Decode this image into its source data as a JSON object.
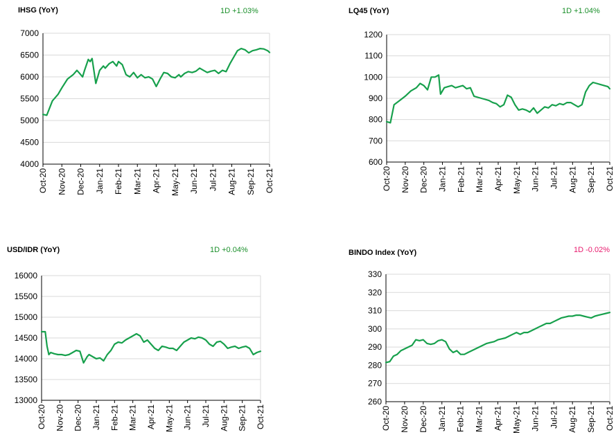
{
  "colors": {
    "line": "#17a04c",
    "positive": "#1a8f2a",
    "negative": "#e8196d",
    "grid": "#d9d9d9",
    "axis": "#000000"
  },
  "chart_data": [
    {
      "type": "line",
      "title": "IHSG (YoY)",
      "change": "1D +1.03%",
      "change_sign": "positive",
      "ylim": [
        4000,
        7000
      ],
      "yticks": [
        "4000",
        "4500",
        "5000",
        "5500",
        "6000",
        "6500",
        "7000"
      ],
      "xticks": [
        "Oct-20",
        "Nov-20",
        "Dec-20",
        "Jan-21",
        "Feb-21",
        "Mar-21",
        "Apr-21",
        "May-21",
        "Jun-21",
        "Jul-21",
        "Aug-21",
        "Sep-21",
        "Oct-21"
      ],
      "grid": "horizontal",
      "series": [
        {
          "x": [
            0,
            0.2,
            0.5,
            0.8,
            1.0,
            1.3,
            1.6,
            1.8,
            1.9,
            2.1,
            2.2,
            2.4,
            2.5,
            2.6,
            2.8,
            3.0,
            3.2,
            3.3,
            3.5,
            3.7,
            3.9,
            4.0,
            4.2,
            4.4,
            4.6,
            4.8,
            5.0,
            5.2,
            5.4,
            5.6,
            5.8,
            6.0,
            6.2,
            6.4,
            6.6,
            6.8,
            7.0,
            7.2,
            7.3,
            7.5,
            7.7,
            7.9,
            8.1,
            8.3,
            8.5,
            8.7,
            8.9,
            9.1,
            9.3,
            9.5,
            9.7,
            9.9,
            10.1,
            10.3,
            10.5,
            10.7,
            10.9,
            11.1,
            11.3,
            11.5,
            11.7,
            11.9,
            12.0
          ],
          "y": [
            5140,
            5120,
            5450,
            5600,
            5750,
            5950,
            6050,
            6150,
            6100,
            6000,
            6150,
            6400,
            6350,
            6420,
            5850,
            6150,
            6250,
            6200,
            6300,
            6350,
            6250,
            6350,
            6280,
            6050,
            6000,
            6100,
            5980,
            6050,
            5980,
            6000,
            5950,
            5780,
            5950,
            6100,
            6080,
            6000,
            5980,
            6050,
            6000,
            6080,
            6120,
            6100,
            6130,
            6200,
            6150,
            6100,
            6130,
            6150,
            6080,
            6150,
            6120,
            6300,
            6450,
            6600,
            6650,
            6620,
            6550,
            6600,
            6620,
            6650,
            6640,
            6600,
            6560
          ]
        }
      ]
    },
    {
      "type": "line",
      "title": "LQ45 (YoY)",
      "change": "1D +1.04%",
      "change_sign": "positive",
      "ylim": [
        600,
        1200
      ],
      "yticks": [
        "600",
        "700",
        "800",
        "900",
        "1000",
        "1100",
        "1200"
      ],
      "xticks": [
        "Oct-20",
        "Nov-20",
        "Dec-20",
        "Jan-21",
        "Feb-21",
        "Mar-21",
        "Apr-21",
        "May-21",
        "Jun-21",
        "Jul-21",
        "Aug-21",
        "Sep-21",
        "Oct-21"
      ],
      "grid": "horizontal",
      "series": [
        {
          "x": [
            0,
            0.2,
            0.4,
            0.7,
            1.0,
            1.3,
            1.6,
            1.8,
            2.0,
            2.2,
            2.4,
            2.6,
            2.8,
            2.9,
            3.1,
            3.3,
            3.5,
            3.7,
            3.9,
            4.1,
            4.3,
            4.5,
            4.7,
            4.9,
            5.1,
            5.3,
            5.5,
            5.7,
            5.9,
            6.1,
            6.3,
            6.5,
            6.7,
            6.9,
            7.1,
            7.3,
            7.5,
            7.7,
            7.9,
            8.1,
            8.3,
            8.5,
            8.7,
            8.9,
            9.1,
            9.3,
            9.5,
            9.7,
            9.9,
            10.1,
            10.3,
            10.5,
            10.7,
            10.9,
            11.1,
            11.3,
            11.5,
            11.7,
            11.9,
            12.0
          ],
          "y": [
            790,
            785,
            870,
            890,
            910,
            935,
            950,
            970,
            960,
            940,
            1000,
            1000,
            1010,
            920,
            950,
            955,
            960,
            950,
            955,
            960,
            945,
            950,
            910,
            905,
            900,
            895,
            890,
            880,
            875,
            860,
            870,
            915,
            905,
            870,
            845,
            850,
            845,
            835,
            855,
            830,
            845,
            860,
            855,
            870,
            865,
            875,
            870,
            880,
            880,
            870,
            860,
            870,
            930,
            960,
            975,
            970,
            965,
            960,
            955,
            945
          ]
        }
      ]
    },
    {
      "type": "line",
      "title": "USD/IDR  (YoY)",
      "change": "1D +0.04%",
      "change_sign": "positive",
      "ylim": [
        13000,
        16000
      ],
      "yticks": [
        "13000",
        "13500",
        "14000",
        "14500",
        "15000",
        "15500",
        "16000"
      ],
      "xticks": [
        "Oct-20",
        "Nov-20",
        "Dec-20",
        "Jan-21",
        "Feb-21",
        "Mar-21",
        "Apr-21",
        "May-21",
        "Jun-21",
        "Jul-21",
        "Aug-21",
        "Sep-21",
        "Oct-21"
      ],
      "grid": "horizontal",
      "series": [
        {
          "x": [
            0,
            0.2,
            0.3,
            0.4,
            0.5,
            0.7,
            0.9,
            1.1,
            1.3,
            1.5,
            1.7,
            1.9,
            2.1,
            2.3,
            2.5,
            2.6,
            2.8,
            3.0,
            3.2,
            3.4,
            3.6,
            3.8,
            4.0,
            4.2,
            4.4,
            4.6,
            4.8,
            5.0,
            5.2,
            5.4,
            5.6,
            5.8,
            6.0,
            6.2,
            6.4,
            6.6,
            6.8,
            7.0,
            7.2,
            7.4,
            7.6,
            7.8,
            8.0,
            8.2,
            8.4,
            8.6,
            8.8,
            9.0,
            9.2,
            9.4,
            9.6,
            9.8,
            10.0,
            10.2,
            10.4,
            10.6,
            10.8,
            11.0,
            11.2,
            11.4,
            11.6,
            11.8,
            12.0
          ],
          "y": [
            14650,
            14650,
            14300,
            14100,
            14150,
            14120,
            14100,
            14100,
            14080,
            14100,
            14150,
            14200,
            14180,
            13900,
            14050,
            14100,
            14050,
            14000,
            14020,
            13950,
            14100,
            14200,
            14350,
            14400,
            14380,
            14450,
            14500,
            14550,
            14600,
            14550,
            14400,
            14450,
            14350,
            14250,
            14200,
            14300,
            14280,
            14250,
            14250,
            14200,
            14300,
            14400,
            14450,
            14500,
            14480,
            14520,
            14500,
            14450,
            14350,
            14300,
            14400,
            14420,
            14350,
            14250,
            14280,
            14300,
            14250,
            14280,
            14300,
            14250,
            14100,
            14150,
            14180
          ]
        }
      ]
    },
    {
      "type": "line",
      "title": "BINDO Index (YoY)",
      "change": "1D -0.02%",
      "change_sign": "negative",
      "ylim": [
        260,
        330
      ],
      "yticks": [
        "260",
        "270",
        "280",
        "290",
        "300",
        "310",
        "320",
        "330"
      ],
      "xticks": [
        "Oct-20",
        "Nov-20",
        "Dec-20",
        "Jan-21",
        "Feb-21",
        "Mar-21",
        "Apr-21",
        "May-21",
        "Jun-21",
        "Jul-21",
        "Aug-21",
        "Sep-21",
        "Oct-21"
      ],
      "grid": "horizontal",
      "series": [
        {
          "x": [
            0,
            0.2,
            0.4,
            0.6,
            0.8,
            1.0,
            1.2,
            1.4,
            1.6,
            1.8,
            2.0,
            2.2,
            2.4,
            2.6,
            2.8,
            3.0,
            3.2,
            3.4,
            3.6,
            3.8,
            4.0,
            4.2,
            4.4,
            4.6,
            4.8,
            5.0,
            5.2,
            5.4,
            5.6,
            5.8,
            6.0,
            6.2,
            6.4,
            6.6,
            6.8,
            7.0,
            7.2,
            7.4,
            7.6,
            7.8,
            8.0,
            8.2,
            8.4,
            8.6,
            8.8,
            9.0,
            9.2,
            9.4,
            9.6,
            9.8,
            10.0,
            10.2,
            10.4,
            10.6,
            10.8,
            11.0,
            11.2,
            11.4,
            11.6,
            11.8,
            12.0
          ],
          "y": [
            281.5,
            282,
            285,
            286,
            288,
            289,
            290,
            291,
            294,
            293.5,
            294,
            292,
            291.5,
            292,
            293.5,
            294,
            293,
            289,
            287,
            288,
            286,
            286,
            287,
            288,
            289,
            290,
            291,
            292,
            292.5,
            293,
            294,
            294.5,
            295,
            296,
            297,
            298,
            297,
            298,
            298,
            299,
            300,
            301,
            302,
            303,
            303,
            304,
            305,
            306,
            306.5,
            307,
            307,
            307.5,
            307.5,
            307,
            306.5,
            306,
            307,
            307.5,
            308,
            308.5,
            309
          ]
        }
      ]
    }
  ]
}
